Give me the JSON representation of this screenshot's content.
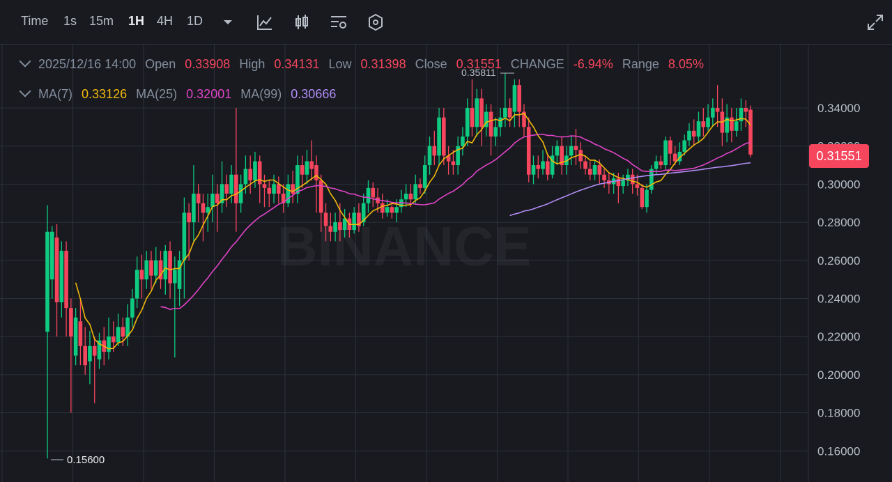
{
  "toolbar": {
    "time_label": "Time",
    "intervals": [
      "1s",
      "15m",
      "1H",
      "4H",
      "1D"
    ],
    "active_interval": "1H",
    "icons": [
      "chevron-down-icon",
      "line-chart-icon",
      "candlestick-icon",
      "indicator-settings-icon",
      "hexagon-settings-icon",
      "expand-icon"
    ]
  },
  "ohlc": {
    "date": "2025/12/16 14:00",
    "open_label": "Open",
    "open": "0.33908",
    "high_label": "High",
    "high": "0.34131",
    "low_label": "Low",
    "low": "0.31398",
    "close_label": "Close",
    "close": "0.31551",
    "change_label": "CHANGE",
    "change": "-6.94%",
    "range_label": "Range",
    "range": "8.05%"
  },
  "ma": {
    "ma7_label": "MA(7)",
    "ma7": "0.33126",
    "ma25_label": "MA(25)",
    "ma25": "0.32001",
    "ma99_label": "MA(99)",
    "ma99": "0.30666"
  },
  "watermark": "BINANCE",
  "current_price": "0.31551",
  "annotations": {
    "high_marker": "0.35811",
    "low_marker": "0.15600"
  },
  "colors": {
    "up": "#0ecb81",
    "down": "#f6465d",
    "ma7": "#f0b90b",
    "ma25": "#e044c6",
    "ma99": "#b18cf4",
    "background": "#181a20",
    "grid": "#2b3139"
  },
  "chart_data": {
    "type": "candlestick",
    "ylim": [
      0.145,
      0.365
    ],
    "y_ticks": [
      "0.34000",
      "0.32000",
      "0.30000",
      "0.28000",
      "0.26000",
      "0.24000",
      "0.22000",
      "0.20000",
      "0.18000",
      "0.16000"
    ],
    "grid": true,
    "candles": [
      [
        0.2225,
        0.275,
        0.289,
        0.156
      ],
      [
        0.25,
        0.275,
        0.278,
        0.24
      ],
      [
        0.272,
        0.238,
        0.279,
        0.22
      ],
      [
        0.238,
        0.265,
        0.27,
        0.23
      ],
      [
        0.265,
        0.235,
        0.27,
        0.22
      ],
      [
        0.235,
        0.22,
        0.24,
        0.18
      ],
      [
        0.21,
        0.23,
        0.235,
        0.205
      ],
      [
        0.228,
        0.215,
        0.24,
        0.205
      ],
      [
        0.215,
        0.205,
        0.225,
        0.2
      ],
      [
        0.207,
        0.215,
        0.223,
        0.195
      ],
      [
        0.215,
        0.21,
        0.22,
        0.185
      ],
      [
        0.208,
        0.218,
        0.222,
        0.203
      ],
      [
        0.218,
        0.212,
        0.225,
        0.205
      ],
      [
        0.212,
        0.22,
        0.23,
        0.208
      ],
      [
        0.22,
        0.217,
        0.228,
        0.212
      ],
      [
        0.217,
        0.225,
        0.232,
        0.215
      ],
      [
        0.225,
        0.22,
        0.23,
        0.215
      ],
      [
        0.22,
        0.23,
        0.237,
        0.215
      ],
      [
        0.23,
        0.24,
        0.245,
        0.225
      ],
      [
        0.24,
        0.255,
        0.262,
        0.235
      ],
      [
        0.255,
        0.25,
        0.263,
        0.24
      ],
      [
        0.25,
        0.26,
        0.265,
        0.245
      ],
      [
        0.26,
        0.252,
        0.265,
        0.245
      ],
      [
        0.252,
        0.26,
        0.267,
        0.248
      ],
      [
        0.26,
        0.25,
        0.265,
        0.245
      ],
      [
        0.25,
        0.265,
        0.268,
        0.242
      ],
      [
        0.265,
        0.248,
        0.27,
        0.24
      ],
      [
        0.248,
        0.255,
        0.262,
        0.209
      ],
      [
        0.245,
        0.26,
        0.265,
        0.236
      ],
      [
        0.26,
        0.285,
        0.293,
        0.24
      ],
      [
        0.285,
        0.28,
        0.29,
        0.26
      ],
      [
        0.28,
        0.295,
        0.31,
        0.27
      ],
      [
        0.295,
        0.29,
        0.3,
        0.28
      ],
      [
        0.29,
        0.285,
        0.295,
        0.27
      ],
      [
        0.285,
        0.288,
        0.295,
        0.275
      ],
      [
        0.288,
        0.295,
        0.305,
        0.28
      ],
      [
        0.295,
        0.29,
        0.3,
        0.275
      ],
      [
        0.29,
        0.3,
        0.312,
        0.285
      ],
      [
        0.3,
        0.295,
        0.305,
        0.288
      ],
      [
        0.295,
        0.305,
        0.31,
        0.29
      ],
      [
        0.305,
        0.29,
        0.34,
        0.275
      ],
      [
        0.29,
        0.3,
        0.305,
        0.285
      ],
      [
        0.3,
        0.308,
        0.315,
        0.295
      ],
      [
        0.308,
        0.302,
        0.315,
        0.295
      ],
      [
        0.302,
        0.312,
        0.317,
        0.298
      ],
      [
        0.312,
        0.3,
        0.315,
        0.29
      ],
      [
        0.3,
        0.298,
        0.305,
        0.288
      ],
      [
        0.298,
        0.295,
        0.302,
        0.288
      ],
      [
        0.295,
        0.3,
        0.305,
        0.29
      ],
      [
        0.3,
        0.295,
        0.304,
        0.29
      ],
      [
        0.295,
        0.29,
        0.3,
        0.285
      ],
      [
        0.29,
        0.3,
        0.305,
        0.288
      ],
      [
        0.3,
        0.295,
        0.307,
        0.29
      ],
      [
        0.295,
        0.31,
        0.315,
        0.29
      ],
      [
        0.31,
        0.305,
        0.315,
        0.298
      ],
      [
        0.305,
        0.312,
        0.318,
        0.3
      ],
      [
        0.312,
        0.308,
        0.323,
        0.302
      ],
      [
        0.31,
        0.302,
        0.315,
        0.285
      ],
      [
        0.302,
        0.285,
        0.305,
        0.275
      ],
      [
        0.285,
        0.278,
        0.29,
        0.27
      ],
      [
        0.278,
        0.275,
        0.285,
        0.27
      ],
      [
        0.275,
        0.28,
        0.285,
        0.27
      ],
      [
        0.28,
        0.276,
        0.29,
        0.27
      ],
      [
        0.276,
        0.282,
        0.287,
        0.272
      ],
      [
        0.282,
        0.276,
        0.285,
        0.272
      ],
      [
        0.276,
        0.285,
        0.288,
        0.274
      ],
      [
        0.285,
        0.278,
        0.29,
        0.275
      ],
      [
        0.28,
        0.29,
        0.295,
        0.278
      ],
      [
        0.29,
        0.298,
        0.302,
        0.285
      ],
      [
        0.298,
        0.293,
        0.301,
        0.288
      ],
      [
        0.293,
        0.29,
        0.298,
        0.285
      ],
      [
        0.29,
        0.285,
        0.295,
        0.282
      ],
      [
        0.285,
        0.288,
        0.292,
        0.283
      ],
      [
        0.288,
        0.285,
        0.29,
        0.282
      ],
      [
        0.285,
        0.288,
        0.292,
        0.28
      ],
      [
        0.288,
        0.292,
        0.297,
        0.285
      ],
      [
        0.292,
        0.295,
        0.3,
        0.288
      ],
      [
        0.295,
        0.292,
        0.3,
        0.288
      ],
      [
        0.292,
        0.3,
        0.305,
        0.29
      ],
      [
        0.3,
        0.298,
        0.303,
        0.295
      ],
      [
        0.298,
        0.31,
        0.315,
        0.295
      ],
      [
        0.31,
        0.32,
        0.325,
        0.305
      ],
      [
        0.32,
        0.315,
        0.328,
        0.31
      ],
      [
        0.315,
        0.335,
        0.34,
        0.31
      ],
      [
        0.335,
        0.315,
        0.34,
        0.31
      ],
      [
        0.315,
        0.312,
        0.32,
        0.305
      ],
      [
        0.312,
        0.31,
        0.318,
        0.305
      ],
      [
        0.31,
        0.32,
        0.325,
        0.305
      ],
      [
        0.32,
        0.325,
        0.33,
        0.315
      ],
      [
        0.325,
        0.34,
        0.345,
        0.32
      ],
      [
        0.34,
        0.33,
        0.355,
        0.325
      ],
      [
        0.33,
        0.345,
        0.35,
        0.325
      ],
      [
        0.345,
        0.33,
        0.35,
        0.32
      ],
      [
        0.33,
        0.338,
        0.342,
        0.325
      ],
      [
        0.338,
        0.325,
        0.342,
        0.315
      ],
      [
        0.325,
        0.33,
        0.335,
        0.32
      ],
      [
        0.33,
        0.335,
        0.34,
        0.325
      ],
      [
        0.335,
        0.34,
        0.3581,
        0.33
      ],
      [
        0.34,
        0.335,
        0.345,
        0.33
      ],
      [
        0.338,
        0.352,
        0.355,
        0.33
      ],
      [
        0.352,
        0.338,
        0.355,
        0.33
      ],
      [
        0.338,
        0.33,
        0.342,
        0.325
      ],
      [
        0.33,
        0.305,
        0.335,
        0.301
      ],
      [
        0.305,
        0.31,
        0.315,
        0.3
      ],
      [
        0.31,
        0.308,
        0.315,
        0.303
      ],
      [
        0.308,
        0.312,
        0.318,
        0.305
      ],
      [
        0.312,
        0.305,
        0.315,
        0.302
      ],
      [
        0.305,
        0.315,
        0.32,
        0.303
      ],
      [
        0.315,
        0.32,
        0.323,
        0.31
      ],
      [
        0.32,
        0.31,
        0.325,
        0.305
      ],
      [
        0.31,
        0.315,
        0.32,
        0.305
      ],
      [
        0.315,
        0.32,
        0.325,
        0.31
      ],
      [
        0.32,
        0.318,
        0.329,
        0.31
      ],
      [
        0.318,
        0.312,
        0.322,
        0.308
      ],
      [
        0.312,
        0.308,
        0.315,
        0.305
      ],
      [
        0.308,
        0.305,
        0.312,
        0.302
      ],
      [
        0.305,
        0.31,
        0.313,
        0.302
      ],
      [
        0.31,
        0.305,
        0.313,
        0.3
      ],
      [
        0.305,
        0.302,
        0.308,
        0.298
      ],
      [
        0.302,
        0.3,
        0.306,
        0.295
      ],
      [
        0.3,
        0.303,
        0.306,
        0.295
      ],
      [
        0.303,
        0.299,
        0.306,
        0.29
      ],
      [
        0.299,
        0.302,
        0.305,
        0.295
      ],
      [
        0.302,
        0.305,
        0.308,
        0.299
      ],
      [
        0.305,
        0.3,
        0.308,
        0.295
      ],
      [
        0.3,
        0.298,
        0.305,
        0.294
      ],
      [
        0.298,
        0.288,
        0.3,
        0.287
      ],
      [
        0.288,
        0.297,
        0.3,
        0.285
      ],
      [
        0.297,
        0.308,
        0.31,
        0.295
      ],
      [
        0.308,
        0.312,
        0.315,
        0.305
      ],
      [
        0.312,
        0.31,
        0.315,
        0.308
      ],
      [
        0.31,
        0.323,
        0.325,
        0.308
      ],
      [
        0.323,
        0.316,
        0.325,
        0.31
      ],
      [
        0.316,
        0.312,
        0.32,
        0.31
      ],
      [
        0.312,
        0.317,
        0.322,
        0.31
      ],
      [
        0.317,
        0.323,
        0.326,
        0.315
      ],
      [
        0.323,
        0.328,
        0.332,
        0.32
      ],
      [
        0.328,
        0.325,
        0.334,
        0.32
      ],
      [
        0.325,
        0.333,
        0.338,
        0.322
      ],
      [
        0.333,
        0.33,
        0.34,
        0.325
      ],
      [
        0.33,
        0.335,
        0.342,
        0.328
      ],
      [
        0.335,
        0.34,
        0.345,
        0.33
      ],
      [
        0.34,
        0.338,
        0.352,
        0.33
      ],
      [
        0.338,
        0.327,
        0.345,
        0.32
      ],
      [
        0.327,
        0.335,
        0.342,
        0.322
      ],
      [
        0.335,
        0.328,
        0.34,
        0.322
      ],
      [
        0.328,
        0.333,
        0.34,
        0.325
      ],
      [
        0.333,
        0.34,
        0.345,
        0.328
      ],
      [
        0.34,
        0.338,
        0.344,
        0.33
      ],
      [
        0.3391,
        0.3155,
        0.3413,
        0.314
      ]
    ],
    "ma7_start": 6,
    "ma25_start": 24,
    "ma99_start": 98
  }
}
